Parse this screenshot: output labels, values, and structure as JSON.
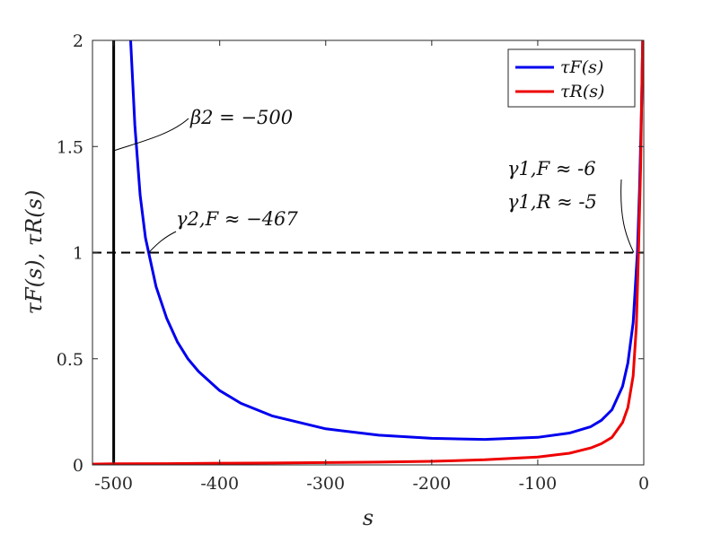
{
  "chart_data": {
    "type": "line",
    "title": "",
    "xlabel": "s",
    "ylabel": "τF(s), τR(s)",
    "xlim": [
      -520,
      0
    ],
    "ylim": [
      0,
      2
    ],
    "xticks": [
      -500,
      -400,
      -300,
      -200,
      -100,
      0
    ],
    "xtick_labels": [
      "-500",
      "-400",
      "-300",
      "-200",
      "-100",
      "0"
    ],
    "yticks": [
      0,
      0.5,
      1,
      1.5,
      2
    ],
    "ytick_labels": [
      "0",
      "0.5",
      "1",
      "1.5",
      "2"
    ],
    "grid": false,
    "legend_position": "top-right",
    "series": [
      {
        "name": "τF(s)",
        "color": "#0000ee",
        "x": [
          -484,
          -480,
          -475,
          -470,
          -467,
          -460,
          -450,
          -440,
          -430,
          -420,
          -400,
          -380,
          -350,
          -300,
          -250,
          -200,
          -150,
          -100,
          -70,
          -50,
          -40,
          -30,
          -20,
          -15,
          -10,
          -6,
          -4,
          -2,
          -1
        ],
        "y": [
          2.0,
          1.6,
          1.27,
          1.07,
          1.0,
          0.84,
          0.69,
          0.58,
          0.5,
          0.44,
          0.35,
          0.29,
          0.23,
          0.17,
          0.14,
          0.125,
          0.12,
          0.13,
          0.15,
          0.18,
          0.21,
          0.26,
          0.37,
          0.48,
          0.67,
          1.0,
          1.3,
          1.7,
          2.0
        ]
      },
      {
        "name": "τR(s)",
        "color": "#ee0000",
        "x": [
          -520,
          -500,
          -450,
          -400,
          -350,
          -300,
          -250,
          -200,
          -150,
          -100,
          -70,
          -50,
          -40,
          -30,
          -20,
          -15,
          -10,
          -7,
          -5,
          -3,
          -2,
          -1
        ],
        "y": [
          0.004,
          0.005,
          0.006,
          0.008,
          0.009,
          0.011,
          0.013,
          0.017,
          0.024,
          0.037,
          0.055,
          0.08,
          0.1,
          0.13,
          0.2,
          0.27,
          0.42,
          0.65,
          1.0,
          1.4,
          1.7,
          2.0
        ]
      }
    ],
    "reference_lines": {
      "horizontal_y": 1,
      "vertical_x": -500
    },
    "annotations": [
      {
        "id": "beta2",
        "text": "β2 = −500",
        "x": -500,
        "y": 1.48
      },
      {
        "id": "gamma2F",
        "text": "γ2,F ≈ −467",
        "x": -467,
        "y": 1.0
      },
      {
        "id": "gamma1F",
        "text": "γ1,F ≈ -6",
        "x": -6,
        "y": 1.0
      },
      {
        "id": "gamma1R",
        "text": "γ1,R ≈ -5",
        "x": -5,
        "y": 1.0
      }
    ]
  }
}
